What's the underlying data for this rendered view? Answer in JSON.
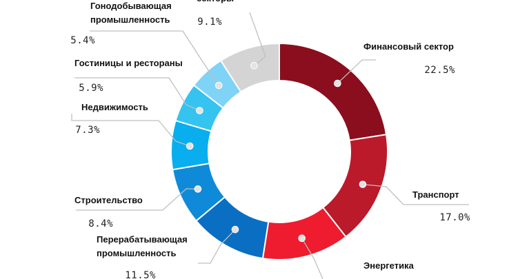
{
  "chart_data": {
    "type": "pie",
    "title": "",
    "slices": [
      {
        "label_lines": [
          "Финансовый сектор"
        ],
        "value": 22.5,
        "value_label": "22.5%",
        "color": "#8b0e1e"
      },
      {
        "label_lines": [
          "Транспорт"
        ],
        "value": 17.0,
        "value_label": "17.0%",
        "color": "#bb1a2a"
      },
      {
        "label_lines": [
          "Энергетика"
        ],
        "value": 13.0,
        "value_label": "",
        "color": "#ee1c2e"
      },
      {
        "label_lines": [
          "Перерабатывающая",
          "промышленность"
        ],
        "value": 11.5,
        "value_label": "11.5%",
        "color": "#0a6fc2"
      },
      {
        "label_lines": [
          "Строительство"
        ],
        "value": 8.4,
        "value_label": "8.4%",
        "color": "#0f8ad8"
      },
      {
        "label_lines": [
          "Недвижимость"
        ],
        "value": 7.3,
        "value_label": "7.3%",
        "color": "#08aeee"
      },
      {
        "label_lines": [
          "Гостиницы и рестораны"
        ],
        "value": 5.9,
        "value_label": "5.9%",
        "color": "#35c3f0"
      },
      {
        "label_lines": [
          "Гонодобывающая",
          "промышленность"
        ],
        "value": 5.4,
        "value_label": "5.4%",
        "color": "#7fd3f7"
      },
      {
        "label_lines": [
          "секторы"
        ],
        "value": 9.1,
        "value_label": "9.1%",
        "color": "#d4d4d4"
      }
    ]
  }
}
